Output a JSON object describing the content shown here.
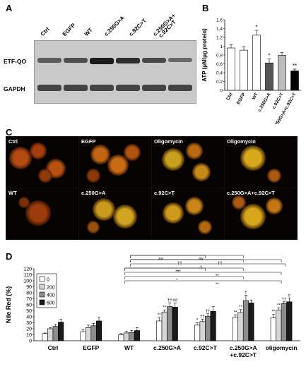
{
  "panels": {
    "a": "A",
    "b": "B",
    "c": "C",
    "d": "D"
  },
  "blot": {
    "lanes": [
      "Ctrl",
      "EGFP",
      "WT",
      "c.250G>A",
      "c.92C>T",
      "c.250G>A+\nc.92C>T"
    ],
    "rows": [
      "ETF-QO",
      "GAPDH"
    ]
  },
  "atp": {
    "ylabel": "ATP (μM/μg protein)",
    "yticks": [
      "0",
      "0.2",
      "0.4",
      "0.6",
      "0.8",
      "1",
      "1.2",
      "1.4",
      "1.6"
    ],
    "categories": [
      "Ctrl",
      "EGFP",
      "WT",
      "c.250G>A",
      "c.92C>T",
      "c.250G>A+c.92C>T"
    ],
    "values": [
      0.96,
      0.91,
      1.25,
      0.62,
      0.79,
      0.44
    ],
    "errors": [
      0.08,
      0.08,
      0.11,
      0.09,
      0.07,
      0.04
    ],
    "marks": [
      "",
      "",
      "*",
      "*",
      "",
      "**"
    ],
    "colors": [
      "#ffffff",
      "#ffffff",
      "#ffffff",
      "#555555",
      "#bdbdbd",
      "#000000"
    ]
  },
  "micro": {
    "labels": [
      "Ctrl",
      "EGFP",
      "Oligomycin",
      "Oligomycin",
      "WT",
      "c.250G>A",
      "c.92C>T",
      "c.250G>A+c.92C>T"
    ]
  },
  "nile": {
    "ylabel": "Nile Red (%)",
    "yticks": [
      "0",
      "10",
      "20",
      "30",
      "40",
      "50",
      "60",
      "70",
      "80",
      "90",
      "100",
      "110",
      "120"
    ],
    "legend": [
      "0",
      "200",
      "400",
      "600"
    ],
    "series_colors": [
      "#ffffff",
      "#d6d6d6",
      "#8c8c8c",
      "#1a1a1a"
    ],
    "groups": [
      "Ctrl",
      "EGFP",
      "WT",
      "c.250G>A",
      "c.92C>T",
      "c.250G>A\n+c.92C>T",
      "oligomycin"
    ],
    "values": [
      [
        12,
        20,
        24,
        31
      ],
      [
        15,
        22,
        25,
        33
      ],
      [
        10,
        13,
        14,
        17
      ],
      [
        33,
        48,
        57,
        56
      ],
      [
        26,
        32,
        41,
        49
      ],
      [
        39,
        47,
        67,
        63
      ],
      [
        38,
        51,
        62,
        65
      ]
    ],
    "errors": [
      [
        1,
        2,
        3,
        5
      ],
      [
        3,
        4,
        4,
        6
      ],
      [
        2,
        3,
        3,
        5
      ],
      [
        6,
        3,
        6,
        7
      ],
      [
        4,
        4,
        4,
        8
      ],
      [
        4,
        5,
        9,
        5
      ],
      [
        6,
        4,
        3,
        6
      ]
    ],
    "marks": [
      [
        "",
        "",
        "",
        ""
      ],
      [
        "",
        "",
        "",
        ""
      ],
      [
        "",
        "",
        "",
        ""
      ],
      [
        "**",
        "**",
        "††",
        "##"
      ],
      [
        "*",
        "††",
        "††",
        ""
      ],
      [
        "**",
        "**",
        "†",
        ""
      ],
      [
        "**",
        "**",
        "††",
        "#"
      ]
    ],
    "brackets": [
      "##",
      "##",
      "††",
      "††",
      "†",
      "**",
      "**",
      "**",
      "*",
      "**"
    ]
  }
}
